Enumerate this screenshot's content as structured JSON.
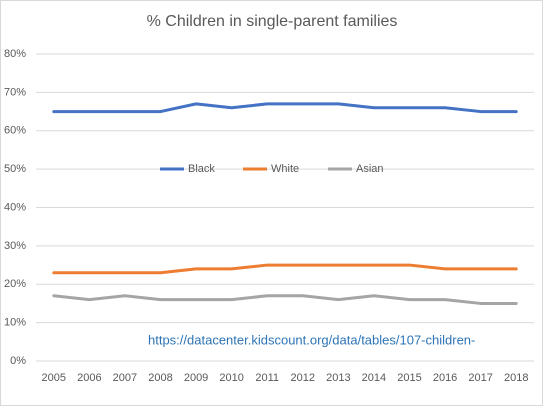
{
  "chart_data": {
    "type": "line",
    "title": "% Children in single-parent families",
    "categories": [
      "2005",
      "2006",
      "2007",
      "2008",
      "2009",
      "2010",
      "2011",
      "2012",
      "2013",
      "2014",
      "2015",
      "2016",
      "2017",
      "2018"
    ],
    "series": [
      {
        "name": "Black",
        "color": "#4472c4",
        "values": [
          65,
          65,
          65,
          65,
          67,
          66,
          67,
          67,
          67,
          66,
          66,
          66,
          65,
          65
        ]
      },
      {
        "name": "White",
        "color": "#ed7d31",
        "values": [
          23,
          23,
          23,
          23,
          24,
          24,
          25,
          25,
          25,
          25,
          25,
          24,
          24,
          24
        ]
      },
      {
        "name": "Asian",
        "color": "#a5a5a5",
        "values": [
          17,
          16,
          17,
          16,
          16,
          16,
          17,
          17,
          16,
          17,
          16,
          16,
          15,
          15
        ]
      }
    ],
    "ylim": [
      0,
      80
    ],
    "yticks": [
      {
        "value": 0,
        "label": "0%"
      },
      {
        "value": 10,
        "label": "10%"
      },
      {
        "value": 20,
        "label": "20%"
      },
      {
        "value": 30,
        "label": "30%"
      },
      {
        "value": 40,
        "label": "40%"
      },
      {
        "value": 50,
        "label": "50%"
      },
      {
        "value": 60,
        "label": "60%"
      },
      {
        "value": 70,
        "label": "70%"
      },
      {
        "value": 80,
        "label": "80%"
      }
    ],
    "grid": true,
    "annotation": "https://datacenter.kidscount.org/data/tables/107-children-"
  }
}
